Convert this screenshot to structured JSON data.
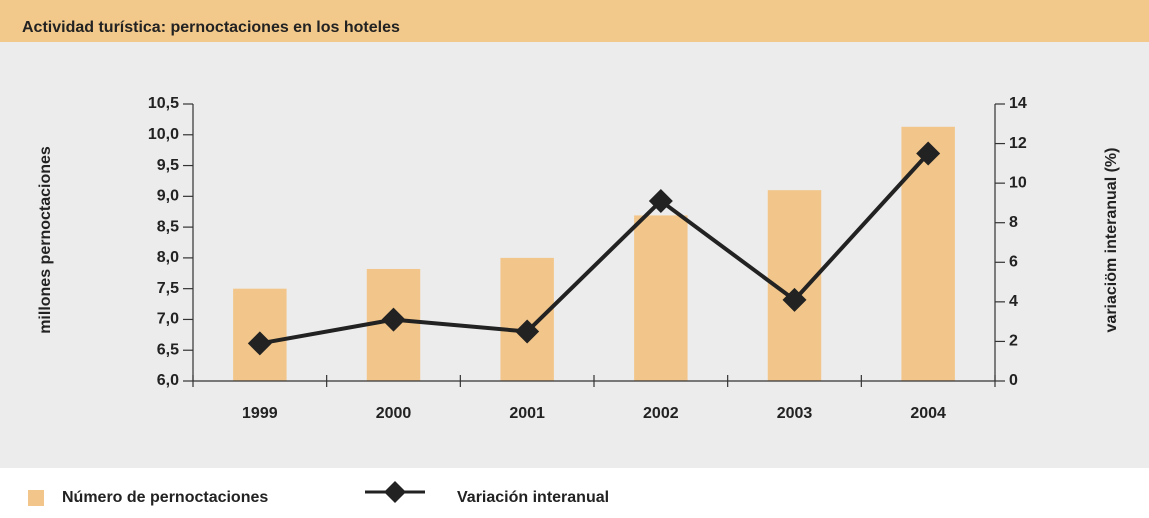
{
  "chart_data": {
    "type": "bar",
    "title": "Actividad turística: pernoctaciones en los hoteles",
    "ylabel": "millones pernoctaciones",
    "y2label": "variaciöm interanual (%)",
    "categories": [
      "1999",
      "2000",
      "2001",
      "2002",
      "2003",
      "2004"
    ],
    "series": [
      {
        "name": "Número de pernoctaciones",
        "type": "bar",
        "color": "#f2c68a",
        "values": [
          7.5,
          7.82,
          8.0,
          8.69,
          9.1,
          10.13
        ]
      },
      {
        "name": "Variación interanual",
        "type": "line",
        "axis": "y2",
        "color": "#222222",
        "values": [
          1.9,
          3.1,
          2.5,
          9.1,
          4.1,
          11.5
        ]
      }
    ],
    "ylim": [
      6.0,
      10.5
    ],
    "yticks": [
      {
        "value": 6.0,
        "label": "6,0"
      },
      {
        "value": 6.5,
        "label": "6,5"
      },
      {
        "value": 7.0,
        "label": "7,0"
      },
      {
        "value": 7.5,
        "label": "7,5"
      },
      {
        "value": 8.0,
        "label": "8,0"
      },
      {
        "value": 8.5,
        "label": "8,5"
      },
      {
        "value": 9.0,
        "label": "9,0"
      },
      {
        "value": 9.5,
        "label": "9,5"
      },
      {
        "value": 10.0,
        "label": "10,0"
      },
      {
        "value": 10.5,
        "label": "10,5"
      }
    ],
    "y2lim": [
      0,
      14
    ],
    "y2ticks": [
      0,
      2,
      4,
      6,
      8,
      10,
      12,
      14
    ],
    "grid": false
  }
}
